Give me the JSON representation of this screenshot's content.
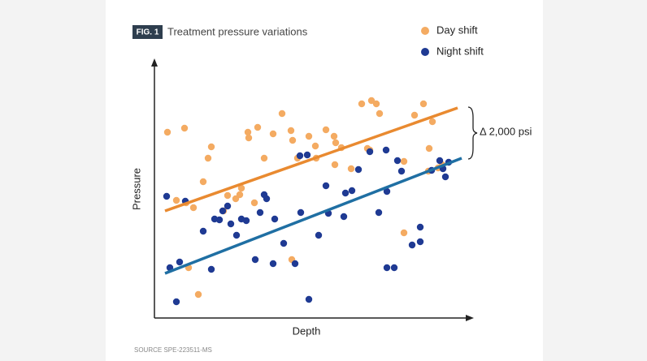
{
  "chart_data": {
    "type": "scatter",
    "figure_label": "FIG. 1",
    "title": "Treatment pressure variations",
    "x_label": "Depth",
    "y_label": "Pressure",
    "annotation": "Δ 2,000 psi",
    "source": "SOURCE SPE-223511-MS",
    "xlim": [
      0,
      390
    ],
    "ylim": [
      0,
      317
    ],
    "series": [
      {
        "name": "Day shift",
        "color": "#f4ab62",
        "x": [
          16,
          37,
          27,
          39,
          48,
          54,
          42,
          60,
          66,
          70,
          85,
          90,
          100,
          105,
          107,
          115,
          127,
          116,
          123,
          135,
          146,
          157,
          168,
          170,
          169,
          176,
          190,
          198,
          199,
          211,
          221,
          223,
          222,
          230,
          242,
          255,
          262,
          267,
          273,
          277,
          265,
          307,
          307,
          320,
          331,
          338,
          342,
          337,
          349,
          354
        ],
        "y": [
          229,
          234,
          145,
          142,
          136,
          29,
          62,
          168,
          197,
          211,
          132,
          151,
          147,
          152,
          160,
          229,
          235,
          222,
          142,
          197,
          227,
          252,
          231,
          219,
          72,
          197,
          224,
          212,
          197,
          232,
          224,
          216,
          189,
          210,
          184,
          264,
          209,
          268,
          264,
          252,
          207,
          193,
          105,
          250,
          264,
          209,
          242,
          181,
          185,
          189
        ],
        "trendline": {
          "color": "#e98a30",
          "x": [
            13,
            373
          ],
          "y": [
            132,
            259
          ]
        }
      },
      {
        "name": "Night shift",
        "color": "#1f3a93",
        "x": [
          15,
          19,
          27,
          31,
          38,
          60,
          70,
          74,
          80,
          84,
          90,
          94,
          101,
          107,
          113,
          124,
          130,
          135,
          138,
          146,
          148,
          159,
          173,
          179,
          180,
          188,
          190,
          202,
          211,
          214,
          233,
          235,
          243,
          251,
          265,
          276,
          285,
          286,
          286,
          295,
          299,
          304,
          317,
          327,
          327,
          341,
          351,
          355,
          358,
          362
        ],
        "y": [
          150,
          62,
          20,
          69,
          144,
          107,
          60,
          122,
          121,
          132,
          138,
          116,
          102,
          122,
          120,
          72,
          130,
          152,
          147,
          67,
          122,
          92,
          67,
          200,
          130,
          201,
          23,
          102,
          163,
          129,
          125,
          154,
          157,
          183,
          205,
          130,
          207,
          156,
          62,
          62,
          194,
          181,
          90,
          112,
          94,
          182,
          194,
          184,
          174,
          192
        ],
        "trendline": {
          "color": "#1f6fa3",
          "x": [
            13,
            378
          ],
          "y": [
            55,
            197
          ]
        }
      }
    ]
  }
}
